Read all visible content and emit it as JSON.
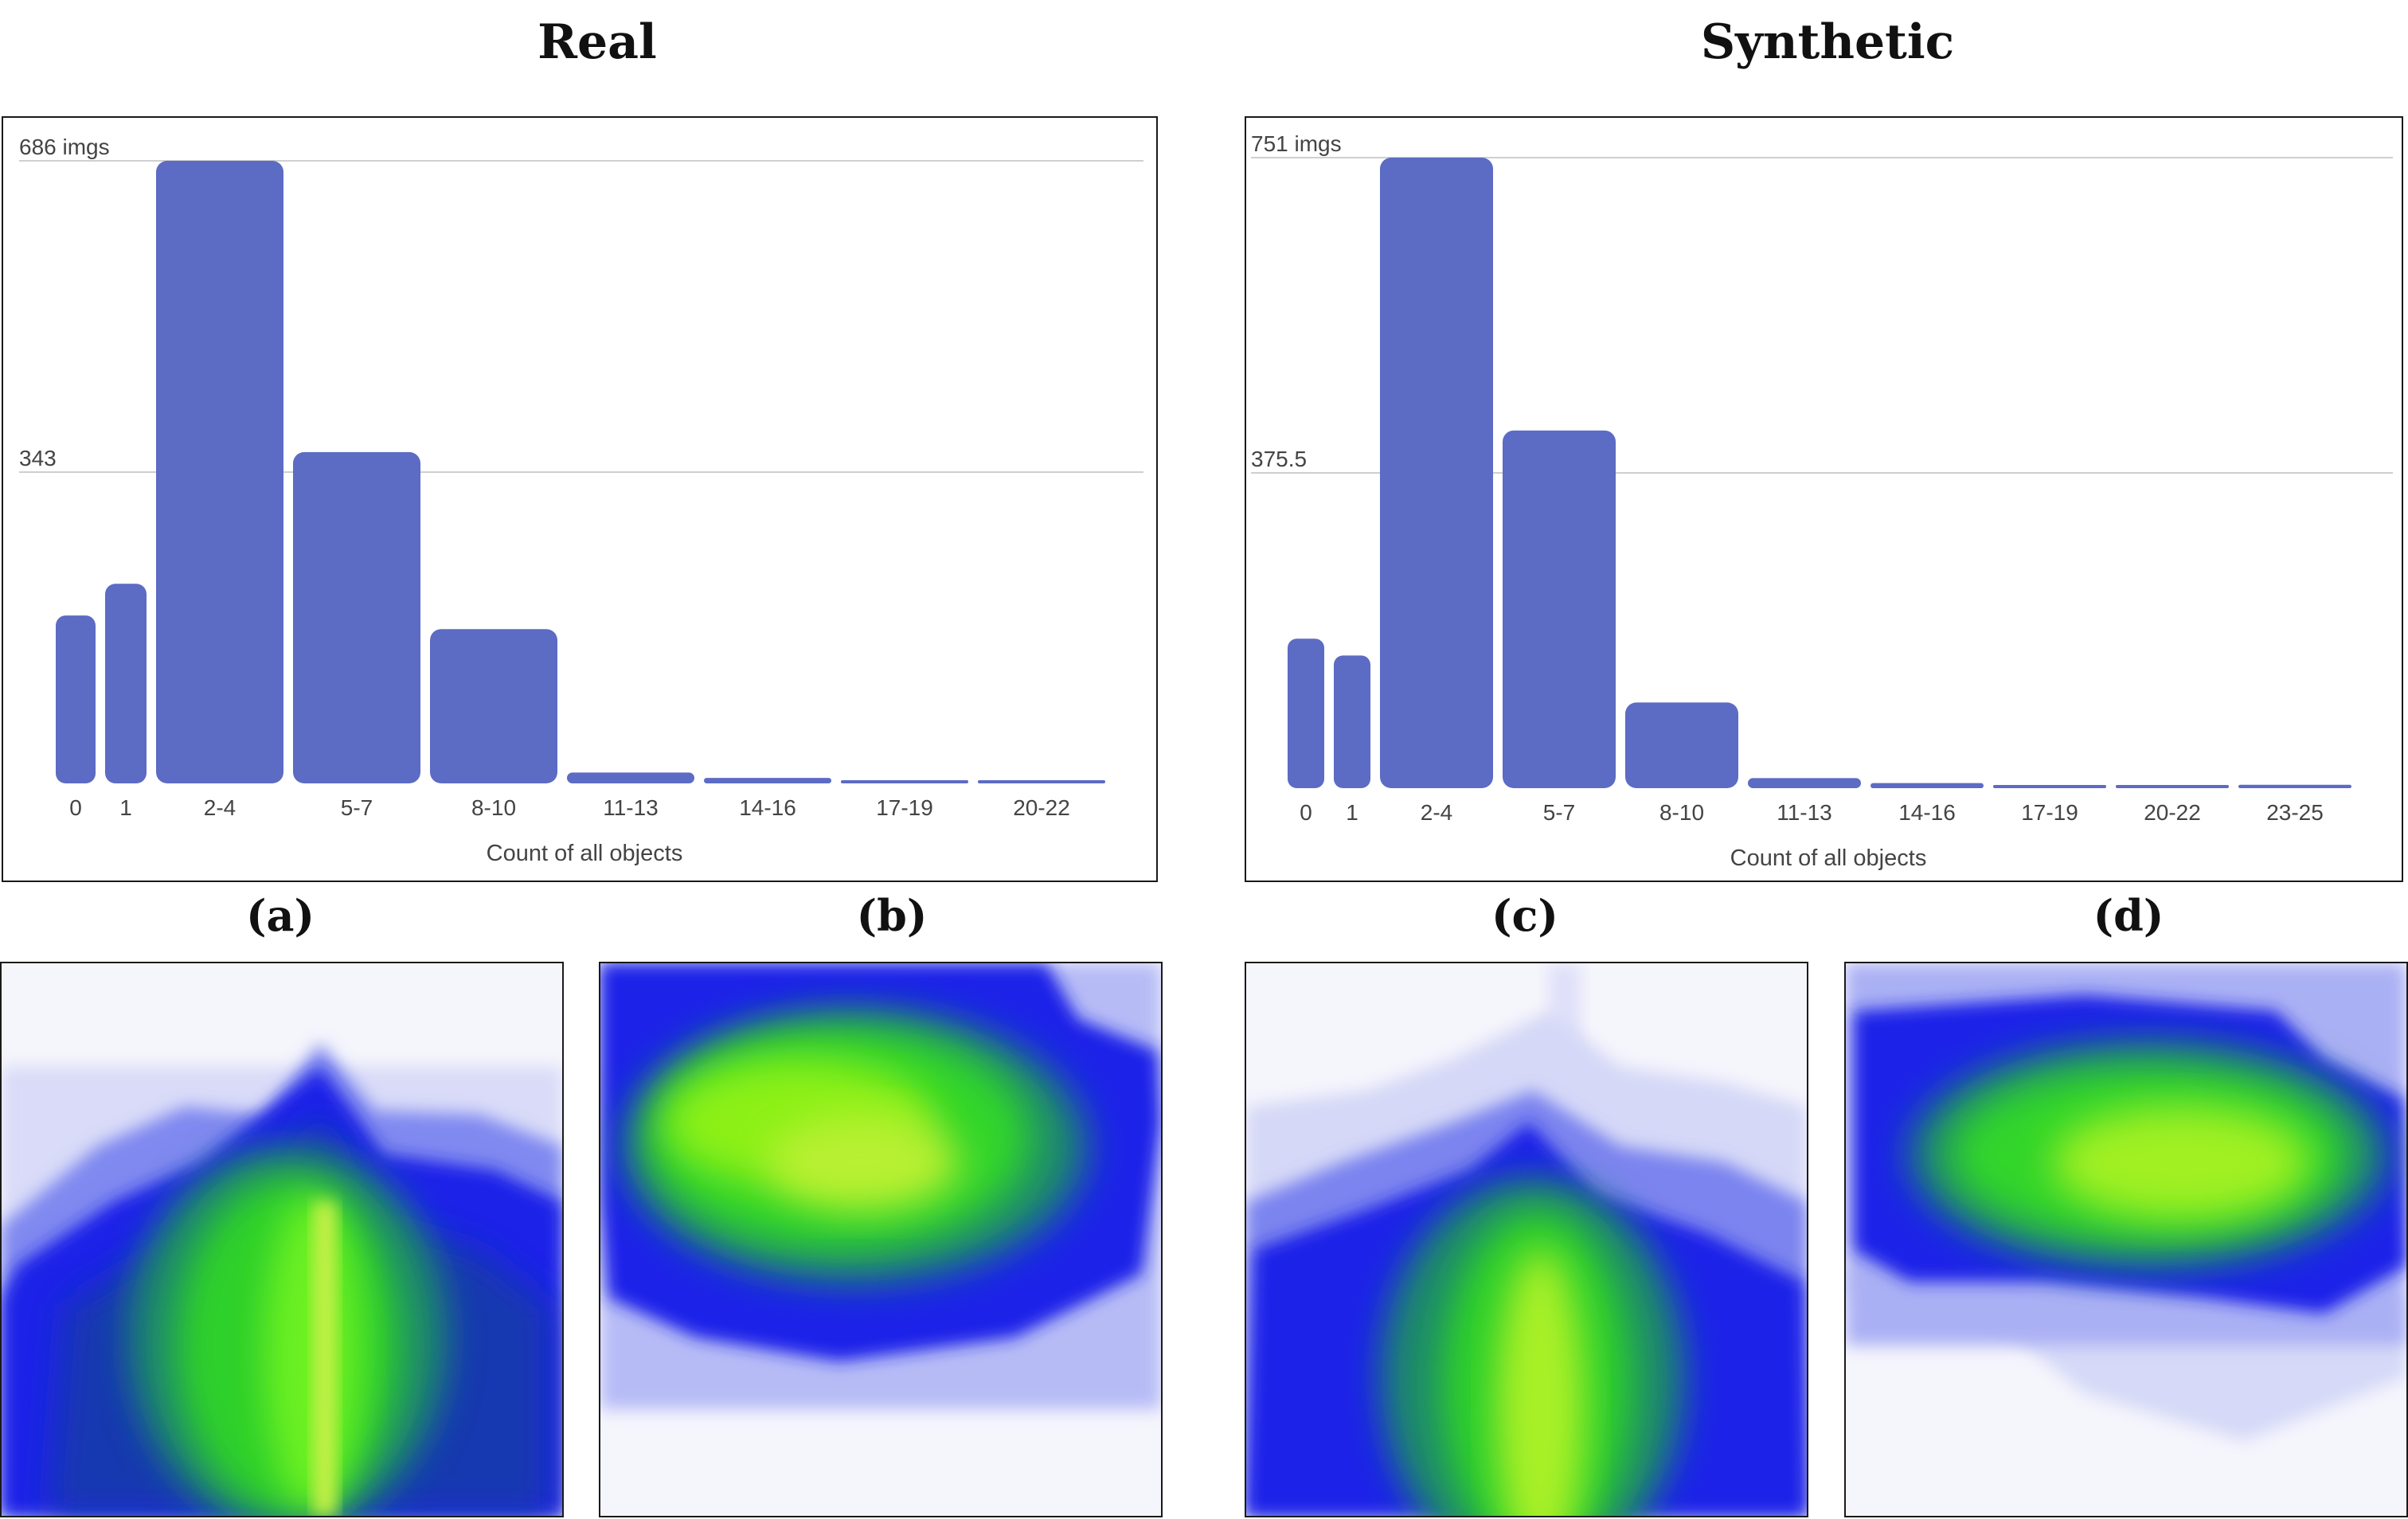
{
  "titles": {
    "left": "Real",
    "right": "Synthetic"
  },
  "fig_labels": {
    "a": "(a)",
    "b": "(b)",
    "c": "(c)",
    "d": "(d)"
  },
  "colors": {
    "bar": "#5c6bc4",
    "grid": "#cfcfcf",
    "text": "#444444"
  },
  "chart_data": [
    {
      "type": "bar",
      "title": "Real",
      "categories": [
        "0",
        "1",
        "2-4",
        "5-7",
        "8-10",
        "11-13",
        "14-16",
        "17-19",
        "20-22"
      ],
      "values": [
        185,
        220,
        686,
        365,
        170,
        12,
        6,
        2,
        2
      ],
      "gridlines": [
        {
          "value": 686,
          "label": "686 imgs"
        },
        {
          "value": 343,
          "label": "343"
        }
      ],
      "xlabel": "Count of all objects",
      "ylabel": "",
      "ylim": [
        0,
        686
      ]
    },
    {
      "type": "bar",
      "title": "Synthetic",
      "categories": [
        "0",
        "1",
        "2-4",
        "5-7",
        "8-10",
        "11-13",
        "14-16",
        "17-19",
        "20-22",
        "23-25"
      ],
      "values": [
        178,
        158,
        751,
        426,
        102,
        12,
        6,
        2,
        2,
        4
      ],
      "gridlines": [
        {
          "value": 751,
          "label": "751 imgs"
        },
        {
          "value": 375.5,
          "label": "375.5"
        }
      ],
      "xlabel": "Count of all objects",
      "ylabel": "",
      "ylim": [
        0,
        751
      ]
    }
  ]
}
